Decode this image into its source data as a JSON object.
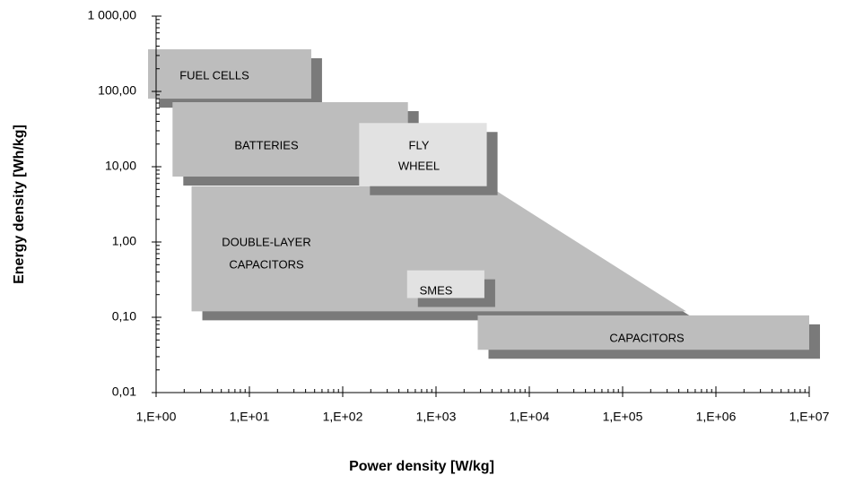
{
  "chart_data": {
    "type": "region",
    "x_label": "Power density [W/kg]",
    "y_label": "Energy density [Wh/kg]",
    "log_x": true,
    "log_y": true,
    "xlim": [
      1,
      10000000
    ],
    "ylim": [
      0.01,
      1000
    ],
    "xticks": [
      {
        "value": 1,
        "label": "1,E+00"
      },
      {
        "value": 10,
        "label": "1,E+01"
      },
      {
        "value": 100,
        "label": "1,E+02"
      },
      {
        "value": 1000,
        "label": "1,E+03"
      },
      {
        "value": 10000,
        "label": "1,E+04"
      },
      {
        "value": 100000,
        "label": "1,E+05"
      },
      {
        "value": 1000000,
        "label": "1,E+06"
      },
      {
        "value": 10000000,
        "label": "1,E+07"
      }
    ],
    "yticks": [
      {
        "value": 0.01,
        "label": "0,01"
      },
      {
        "value": 0.1,
        "label": "0,10"
      },
      {
        "value": 1,
        "label": "1,00"
      },
      {
        "value": 10,
        "label": "10,00"
      },
      {
        "value": 100,
        "label": "100,00"
      },
      {
        "value": 1000,
        "label": "1 000,00"
      }
    ],
    "regions": [
      {
        "label": [
          "FUEL CELLS"
        ],
        "color": "#bdbdbd",
        "x": [
          0.82,
          46,
          46,
          0.82
        ],
        "y": [
          363,
          363,
          80,
          80
        ]
      },
      {
        "label": [
          "BATTERIES"
        ],
        "color": "#bdbdbd",
        "x": [
          1.5,
          500,
          500,
          1.5
        ],
        "y": [
          72,
          72,
          7.4,
          7.4
        ]
      },
      {
        "label": [
          "DOUBLE-LAYER",
          "CAPACITORS"
        ],
        "color": "#bdbdbd",
        "x": [
          2.4,
          3700,
          480000,
          2.4
        ],
        "y": [
          5.5,
          5.5,
          0.12,
          0.12
        ]
      },
      {
        "label": [
          "FLY",
          "WHEEL"
        ],
        "color": "#e2e2e2",
        "x": [
          150,
          3500,
          3500,
          150
        ],
        "y": [
          38,
          38,
          5.5,
          5.5
        ]
      },
      {
        "label": [
          "SMES"
        ],
        "color": "#e2e2e2",
        "x": [
          490,
          3300,
          3300,
          490
        ],
        "y": [
          0.42,
          0.42,
          0.18,
          0.18
        ]
      },
      {
        "label": [
          "CAPACITORS"
        ],
        "color": "#bdbdbd",
        "x": [
          2800,
          10000000,
          10000000,
          2800
        ],
        "y": [
          0.106,
          0.106,
          0.037,
          0.037
        ]
      }
    ]
  }
}
